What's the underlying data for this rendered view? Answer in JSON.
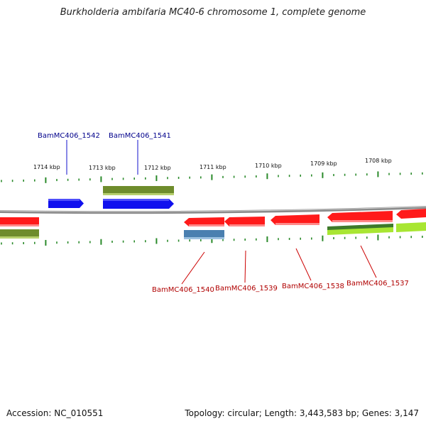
{
  "title": "Burkholderia ambifaria MC40-6 chromosome 1, complete genome",
  "accession_text": "Accession: NC_010551",
  "summary_text": "Topology: circular; Length: 3,443,583 bp; Genes: 3,147",
  "colors": {
    "backbone": "#8a8a8a",
    "tick": "#2a8a2a",
    "gene_red": "#ff1a1a",
    "gene_blue": "#1010ee",
    "gene_olive": "#6e8c2c",
    "gene_steel": "#4a7fb0",
    "gene_darkgreen": "#3d7a2a",
    "gene_lime": "#a8e632",
    "label_blue": "#00008b",
    "label_red": "#b00000"
  },
  "kbp_labels": [
    "1714 kbp",
    "1713 kbp",
    "1712 kbp",
    "1711 kbp",
    "1710 kbp",
    "1709 kbp",
    "1708 kbp"
  ],
  "gene_labels_top": [
    "BamMC406_1542",
    "BamMC406_1541"
  ],
  "gene_labels_bottom": [
    "BamMC406_1540",
    "BamMC406_1539",
    "BamMC406_1538",
    "BamMC406_1537"
  ]
}
